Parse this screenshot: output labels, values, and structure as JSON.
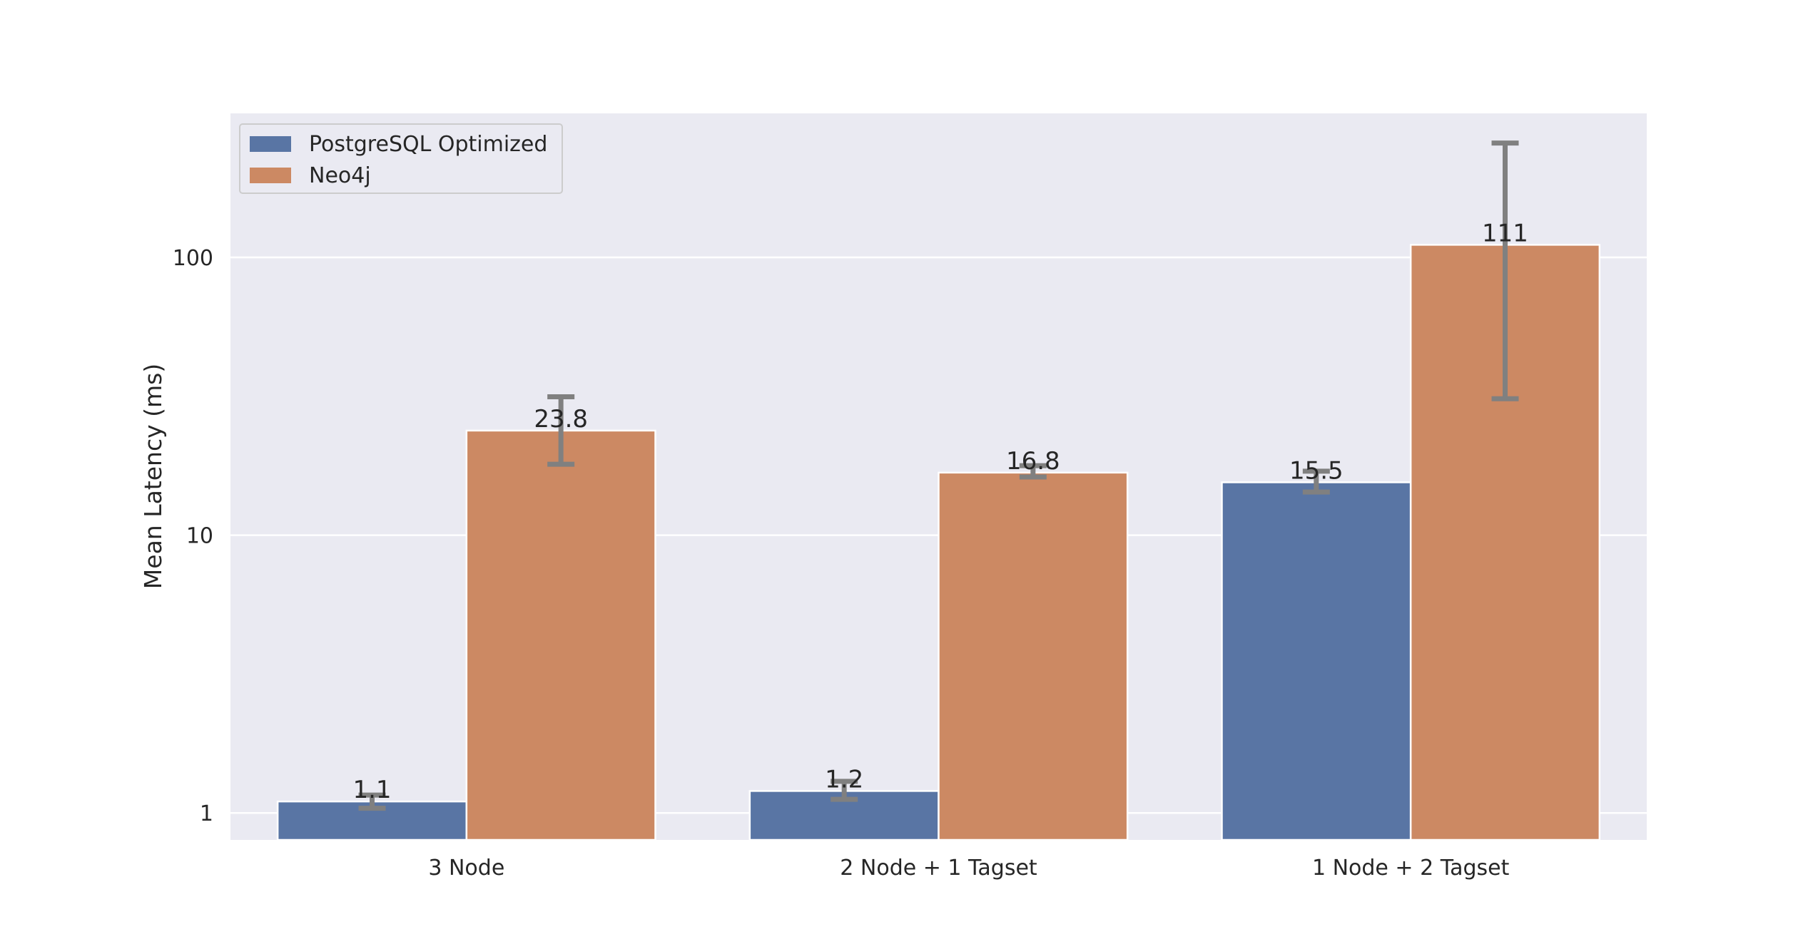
{
  "chart_data": {
    "type": "bar",
    "title": "",
    "xlabel": "",
    "ylabel": "Mean Latency (ms)",
    "yscale": "log",
    "ylim": [
      0.8,
      330
    ],
    "yticks": [
      1,
      10,
      100
    ],
    "ytick_labels": [
      "1",
      "10",
      "100"
    ],
    "grid": true,
    "legend_position": "top-left",
    "categories": [
      "3 Node",
      "2 Node + 1 Tagset",
      "1 Node + 2 Tagset"
    ],
    "series": [
      {
        "name": "PostgreSQL Optimized",
        "color": "#5975a4",
        "values": [
          1.1,
          1.2,
          15.5
        ],
        "labels": [
          "1.1",
          "1.2",
          "15.5"
        ],
        "error_low": [
          1.04,
          1.12,
          14.3
        ],
        "error_high": [
          1.16,
          1.3,
          17.0
        ]
      },
      {
        "name": "Neo4j",
        "color": "#cc8963",
        "values": [
          23.8,
          16.8,
          111
        ],
        "labels": [
          "23.8",
          "16.8",
          "111"
        ],
        "error_low": [
          18.0,
          16.2,
          31.0
        ],
        "error_high": [
          31.5,
          17.8,
          258
        ]
      }
    ],
    "colors": {
      "plot_background": "#eaeaf2",
      "grid": "#ffffff",
      "error_bar": "#808080"
    }
  }
}
